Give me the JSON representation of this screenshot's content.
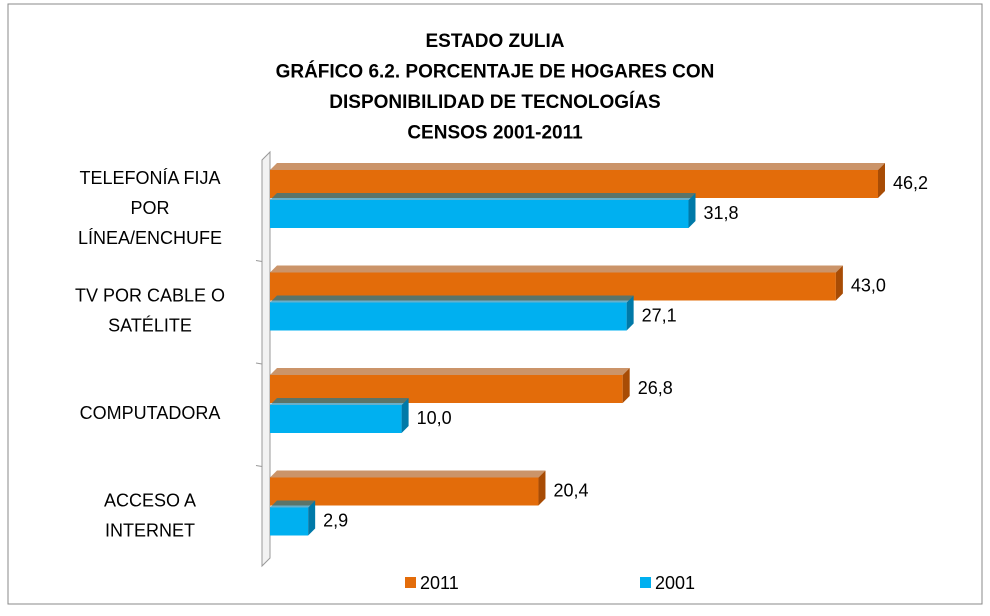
{
  "chart_data": {
    "type": "bar",
    "orientation": "horizontal",
    "title": [
      "ESTADO ZULIA",
      "GRÁFICO 6.2. PORCENTAJE DE HOGARES CON",
      "DISPONIBILIDAD DE TECNOLOGÍAS",
      "CENSOS 2001-2011"
    ],
    "categories": [
      [
        "TELEFONÍA FIJA",
        "POR",
        "LÍNEA/ENCHUFE"
      ],
      [
        "TV POR CABLE O",
        "SATÉLITE"
      ],
      [
        "COMPUTADORA"
      ],
      [
        "ACCESO A",
        "INTERNET"
      ]
    ],
    "series": [
      {
        "name": "2011",
        "color": "#e36c0a",
        "side": "#a84c05",
        "values": [
          46.2,
          43.0,
          26.8,
          20.4
        ],
        "value_labels": [
          "46,2",
          "43,0",
          "26,8",
          "20,4"
        ]
      },
      {
        "name": "2001",
        "color": "#00b0f0",
        "side": "#0079a8",
        "values": [
          31.8,
          27.1,
          10.0,
          2.9
        ],
        "value_labels": [
          "31,8",
          "27,1",
          "10,0",
          "2,9"
        ]
      }
    ],
    "xlim": [
      0,
      50
    ],
    "legend": "bottom"
  }
}
